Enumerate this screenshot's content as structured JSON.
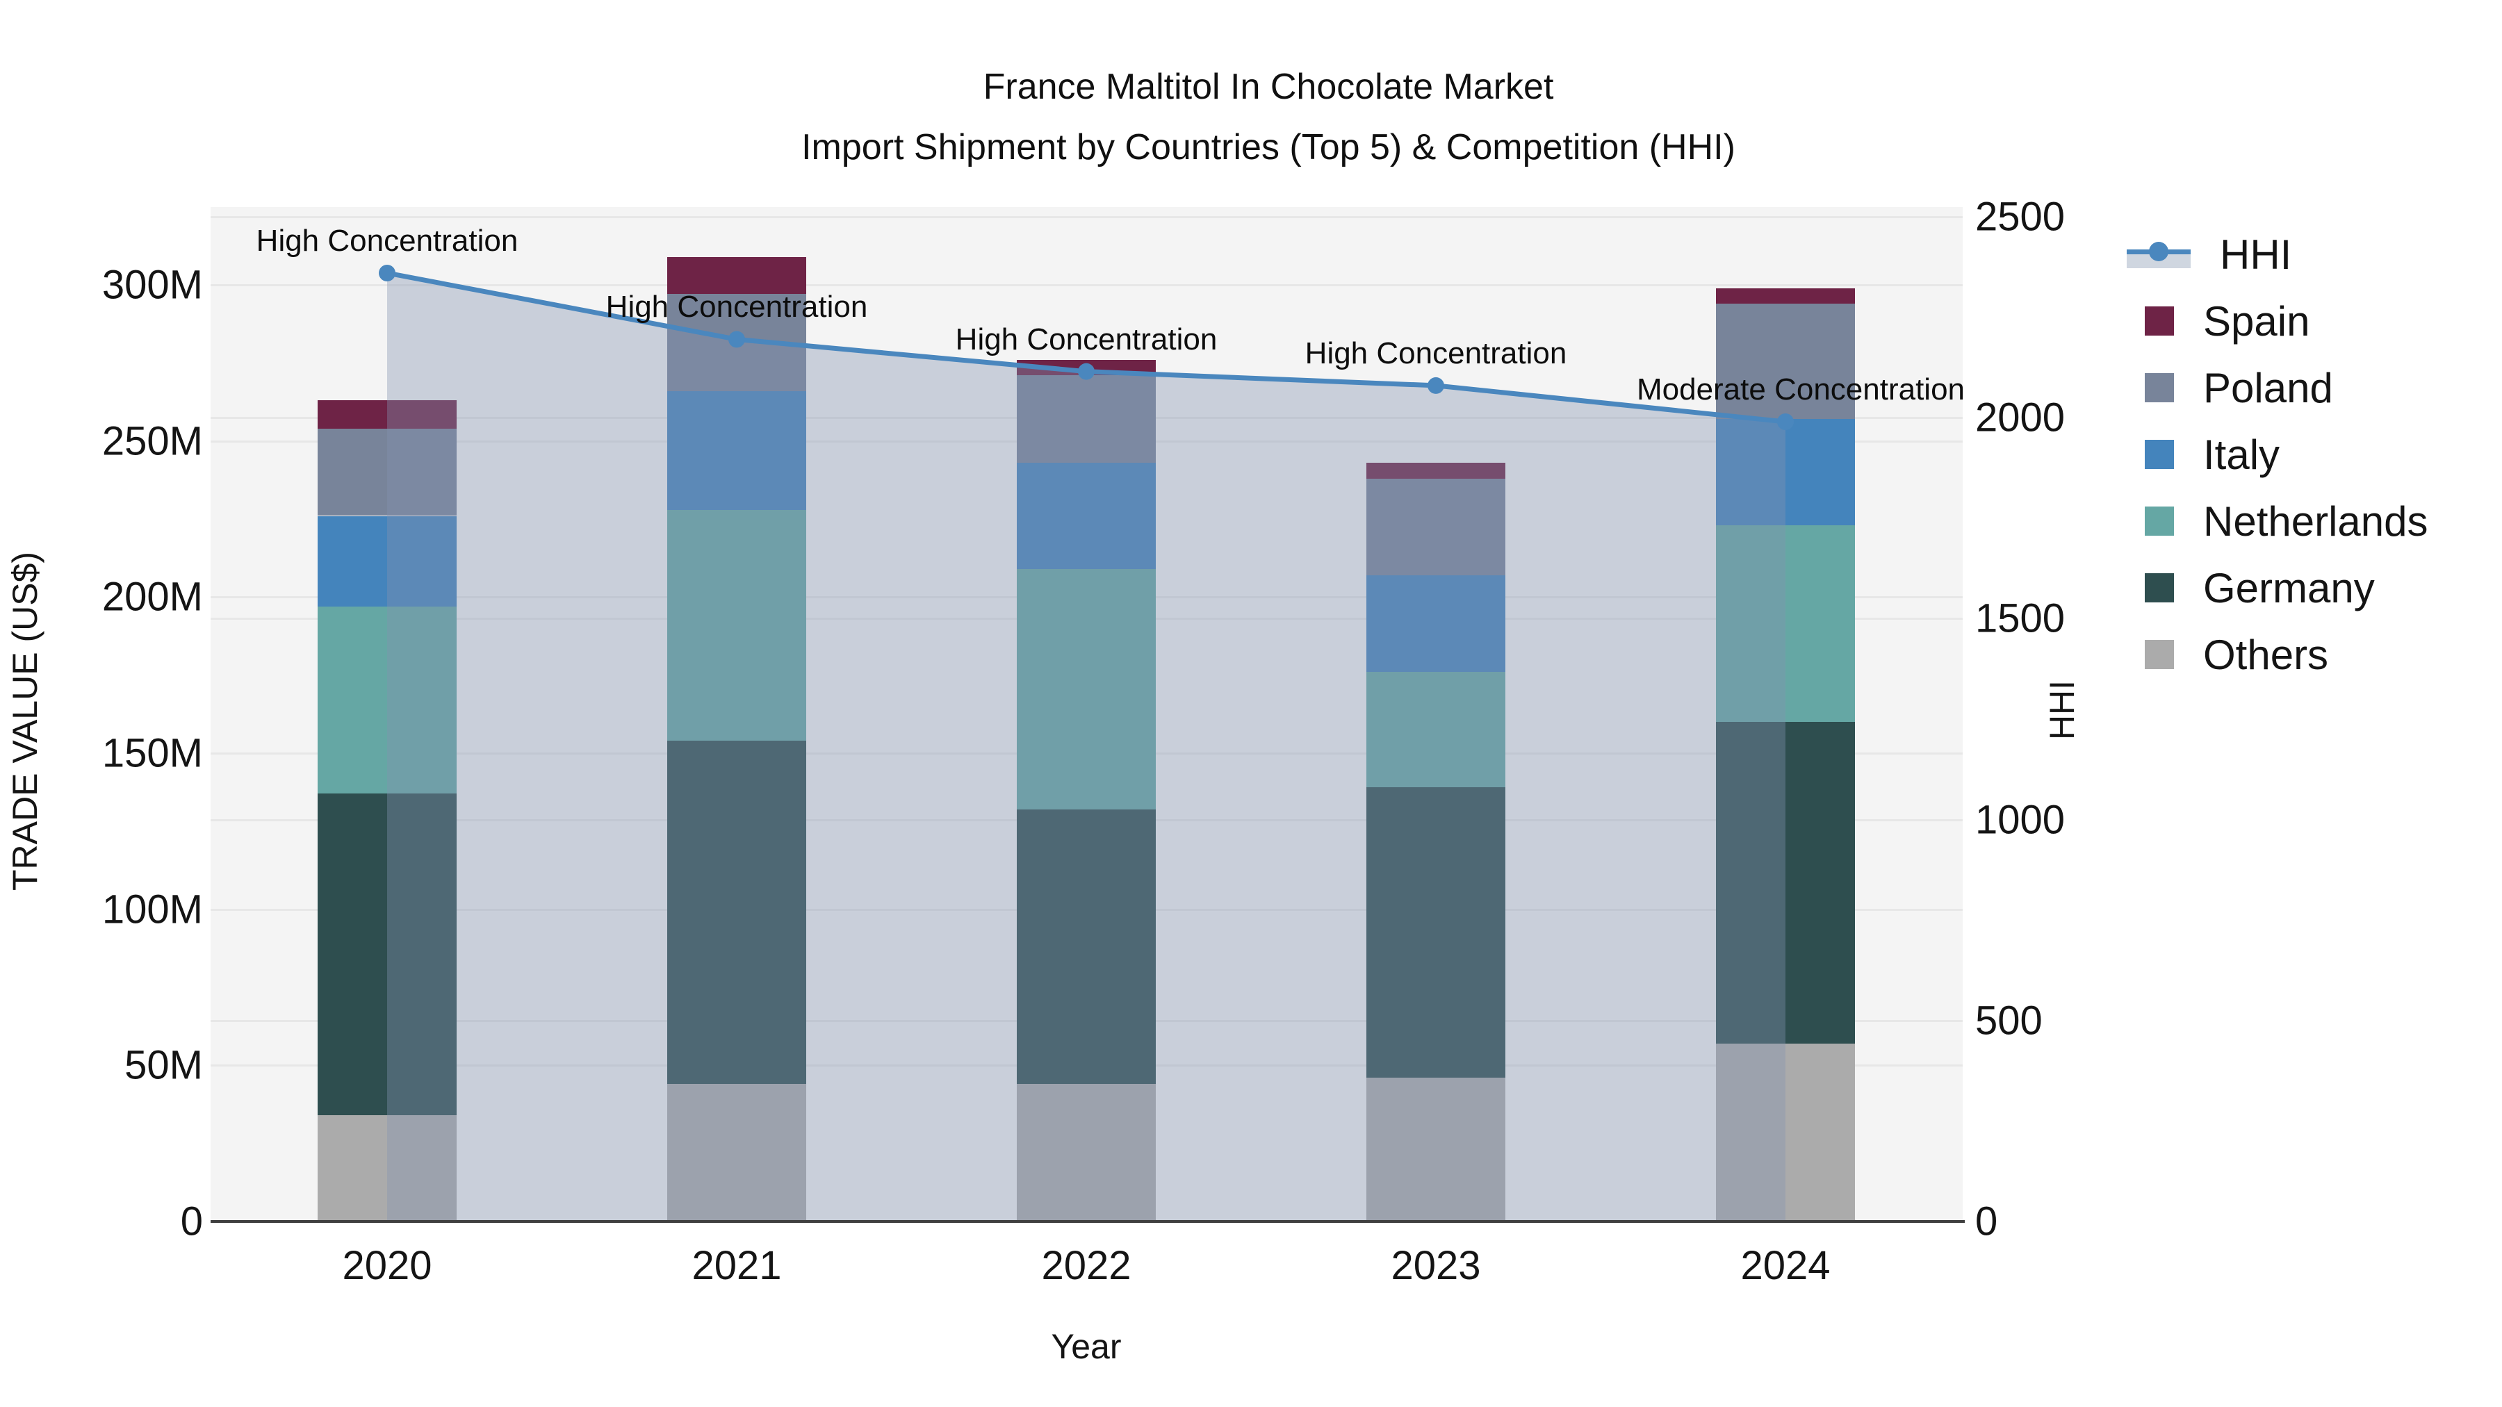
{
  "title": {
    "line1": "France Maltitol In Chocolate Market",
    "line2": "Import Shipment by Countries (Top 5) & Competition (HHI)"
  },
  "axes": {
    "x_title": "Year",
    "y_left_title": "TRADE VALUE (US$)",
    "y_right_title": "HHI",
    "x_ticks": [
      "2020",
      "2021",
      "2022",
      "2023",
      "2024"
    ],
    "y_left_ticks": [
      "0",
      "50M",
      "100M",
      "150M",
      "200M",
      "250M",
      "300M"
    ],
    "y_right_ticks": [
      "0",
      "500",
      "1000",
      "1500",
      "2000",
      "2500"
    ]
  },
  "legend": {
    "items": [
      {
        "label": "HHI",
        "type": "line",
        "color": "#4A87BE",
        "band": "#CFD6E0"
      },
      {
        "label": "Spain",
        "type": "swatch",
        "color": "#6E2346"
      },
      {
        "label": "Poland",
        "type": "swatch",
        "color": "#78849A"
      },
      {
        "label": "Italy",
        "type": "swatch",
        "color": "#4484BC"
      },
      {
        "label": "Netherlands",
        "type": "swatch",
        "color": "#65A7A4"
      },
      {
        "label": "Germany",
        "type": "swatch",
        "color": "#2E4E4F"
      },
      {
        "label": "Others",
        "type": "swatch",
        "color": "#ABABAB"
      }
    ]
  },
  "chart_data": {
    "type": "bar",
    "subtype": "stacked-bars-with-line",
    "categories": [
      "2020",
      "2021",
      "2022",
      "2023",
      "2024"
    ],
    "value_unit": "M US$",
    "series": [
      {
        "name": "Spain",
        "color": "#6E2346",
        "values": [
          9,
          12,
          5,
          5,
          5
        ]
      },
      {
        "name": "Poland",
        "color": "#78849A",
        "values": [
          28,
          31,
          28,
          31,
          37
        ]
      },
      {
        "name": "Italy",
        "color": "#4484BC",
        "values": [
          29,
          38,
          34,
          31,
          34
        ]
      },
      {
        "name": "Netherlands",
        "color": "#65A7A4",
        "values": [
          60,
          74,
          77,
          37,
          63
        ]
      },
      {
        "name": "Germany",
        "color": "#2E4E4F",
        "values": [
          103,
          110,
          88,
          93,
          103
        ]
      },
      {
        "name": "Others",
        "color": "#ABABAB",
        "values": [
          34,
          44,
          44,
          46,
          57
        ]
      }
    ],
    "totals": [
      263,
      309,
      276,
      243,
      299
    ],
    "line_series": {
      "name": "HHI",
      "axis": "right",
      "color": "#4A87BE",
      "area_fill": "rgba(132,148,175,0.38)",
      "values": [
        2360,
        2195,
        2115,
        2080,
        1990
      ]
    },
    "annotations": [
      {
        "year": "2020",
        "text": "High Concentration"
      },
      {
        "year": "2021",
        "text": "High Concentration"
      },
      {
        "year": "2022",
        "text": "High Concentration"
      },
      {
        "year": "2023",
        "text": "High Concentration"
      },
      {
        "year": "2024",
        "text": "Moderate Concentration"
      }
    ],
    "title": "France Maltitol In Chocolate Market Import Shipment by Countries (Top 5) & Competition (HHI)",
    "xlabel": "Year",
    "ylabel_left": "TRADE VALUE (US$)",
    "ylabel_right": "HHI",
    "ylim_left": [
      0,
      325
    ],
    "ylim_right": [
      0,
      2525
    ],
    "grid": true,
    "legend_position": "right"
  }
}
